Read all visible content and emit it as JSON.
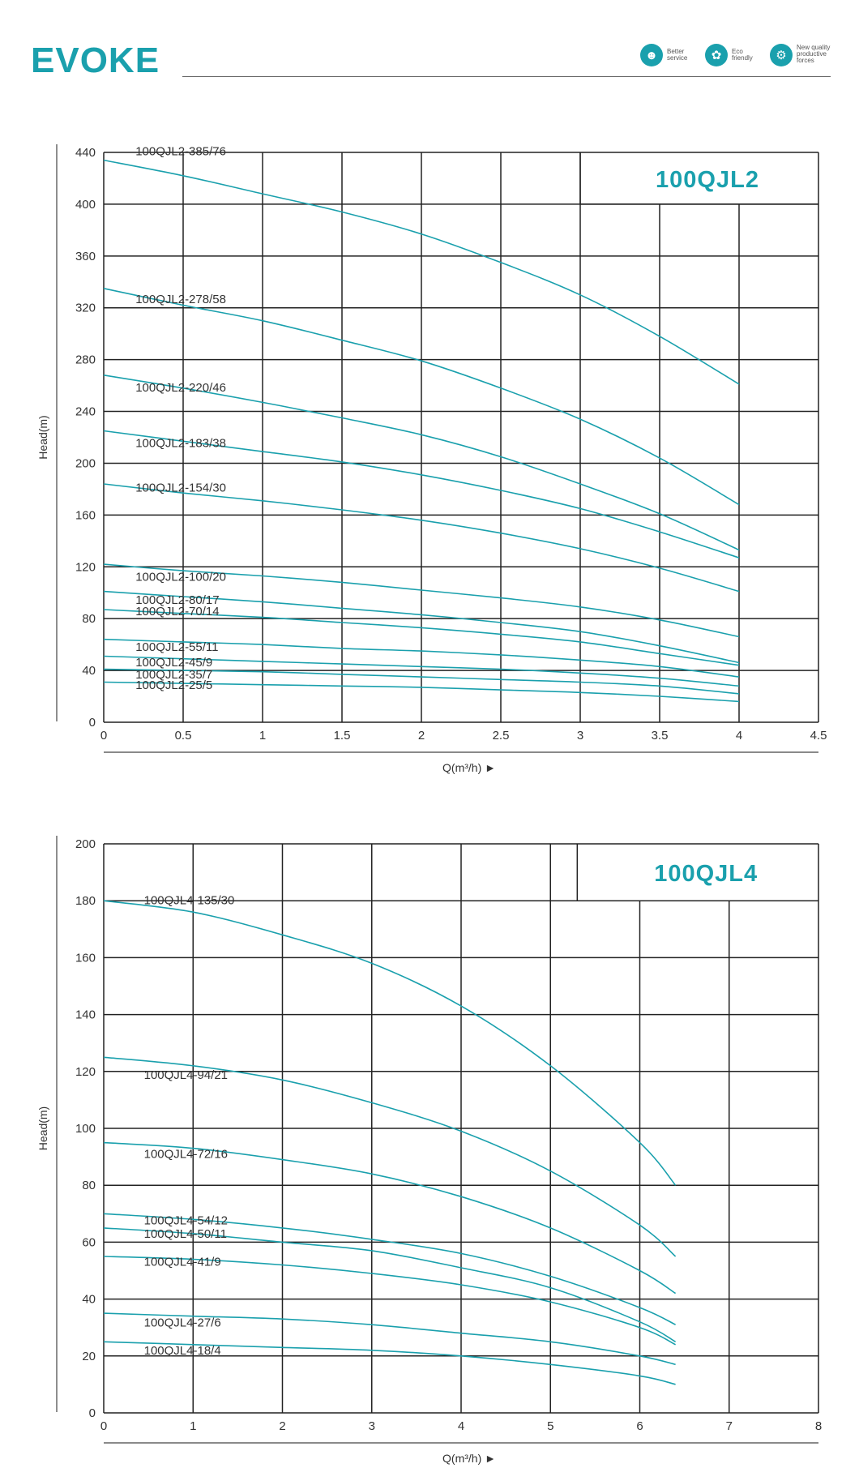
{
  "header": {
    "brand": "EVOKE",
    "badges": [
      {
        "line1": "Better",
        "line2": "service",
        "icon": "person-icon"
      },
      {
        "line1": "Eco",
        "line2": "friendly",
        "icon": "leaf-icon"
      },
      {
        "line1": "New quality",
        "line2": "productive",
        "line3": "forces",
        "icon": "gear-icon"
      }
    ]
  },
  "chart_data": [
    {
      "type": "line",
      "title": "100QJL2",
      "xlabel": "Q(m³/h) ►",
      "ylabel": "Head(m)",
      "xlim": [
        0,
        4.5
      ],
      "ylim": [
        0,
        440
      ],
      "xticks": [
        "0",
        "0.5",
        "1",
        "1.5",
        "2",
        "2.5",
        "3",
        "3.5",
        "4",
        "4.5"
      ],
      "yticks": [
        "0",
        "40",
        "80",
        "120",
        "160",
        "200",
        "240",
        "280",
        "320",
        "360",
        "400",
        "440"
      ],
      "grid": true,
      "x": [
        0,
        0.5,
        1,
        1.5,
        2,
        2.5,
        3,
        3.5,
        4
      ],
      "series": [
        {
          "name": "100QJL2-385/76",
          "values": [
            434,
            422,
            408,
            394,
            377,
            355,
            330,
            298,
            261
          ]
        },
        {
          "name": "100QJL2-278/58",
          "values": [
            335,
            322,
            310,
            295,
            279,
            258,
            234,
            204,
            168
          ]
        },
        {
          "name": "100QJL2-220/46",
          "values": [
            268,
            258,
            247,
            235,
            222,
            205,
            184,
            161,
            133
          ]
        },
        {
          "name": "100QJL2-183/38",
          "values": [
            225,
            217,
            209,
            201,
            191,
            179,
            165,
            147,
            127
          ]
        },
        {
          "name": "100QJL2-154/30",
          "values": [
            184,
            177,
            171,
            164,
            156,
            146,
            134,
            119,
            101
          ]
        },
        {
          "name": "100QJL2-100/20",
          "values": [
            122,
            117,
            113,
            108,
            102,
            96,
            89,
            79,
            66
          ]
        },
        {
          "name": "100QJL2-80/17",
          "values": [
            101,
            97,
            93,
            88,
            83,
            77,
            70,
            59,
            46
          ]
        },
        {
          "name": "100QJL2-70/14",
          "values": [
            87,
            84,
            81,
            77,
            73,
            68,
            62,
            53,
            44
          ]
        },
        {
          "name": "100QJL2-55/11",
          "values": [
            64,
            62,
            60,
            57,
            55,
            52,
            48,
            43,
            35
          ]
        },
        {
          "name": "100QJL2-45/9",
          "values": [
            51,
            49,
            47,
            45,
            43,
            41,
            38,
            34,
            28
          ]
        },
        {
          "name": "100QJL2-35/7",
          "values": [
            41,
            40,
            39,
            37,
            35,
            33,
            31,
            28,
            22
          ]
        },
        {
          "name": "100QJL2-25/5",
          "values": [
            31,
            30,
            29,
            28,
            27,
            25,
            23,
            20,
            16
          ]
        }
      ]
    },
    {
      "type": "line",
      "title": "100QJL4",
      "xlabel": "Q(m³/h) ►",
      "ylabel": "Head(m)",
      "xlim": [
        0,
        8
      ],
      "ylim": [
        0,
        200
      ],
      "xticks": [
        "0",
        "1",
        "2",
        "3",
        "4",
        "5",
        "6",
        "7",
        "8"
      ],
      "yticks": [
        "0",
        "20",
        "40",
        "60",
        "80",
        "100",
        "120",
        "140",
        "160",
        "180",
        "200"
      ],
      "grid": true,
      "x": [
        0,
        1,
        2,
        3,
        4,
        5,
        6,
        6.4
      ],
      "series": [
        {
          "name": "100QJL4-135/30",
          "values": [
            180,
            176,
            168,
            158,
            143,
            122,
            95,
            80
          ]
        },
        {
          "name": "100QJL4-94/21",
          "values": [
            125,
            122,
            117,
            109,
            99,
            85,
            66,
            55
          ]
        },
        {
          "name": "100QJL4-72/16",
          "values": [
            95,
            93,
            89,
            84,
            76,
            65,
            50,
            42
          ]
        },
        {
          "name": "100QJL4-54/12",
          "values": [
            70,
            68,
            65,
            61,
            56,
            48,
            37,
            31
          ]
        },
        {
          "name": "100QJL4-50/11",
          "values": [
            65,
            63,
            60,
            57,
            51,
            44,
            32,
            25
          ]
        },
        {
          "name": "100QJL4-41/9",
          "values": [
            55,
            54,
            52,
            49,
            45,
            39,
            30,
            24
          ]
        },
        {
          "name": "100QJL4-27/6",
          "values": [
            35,
            34,
            33,
            31,
            28,
            25,
            20,
            17
          ]
        },
        {
          "name": "100QJL4-18/4",
          "values": [
            25,
            24,
            23,
            22,
            20,
            17,
            13,
            10
          ]
        }
      ]
    }
  ]
}
